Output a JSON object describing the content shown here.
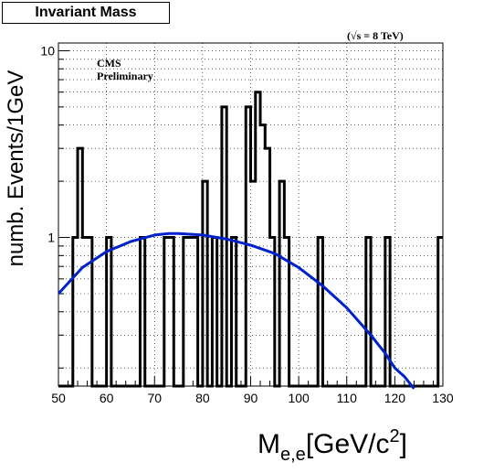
{
  "title": "Invariant Mass",
  "energy_label": "(√s = 8 TeV)",
  "cms_label": "CMS",
  "preliminary_label": "Preliminary",
  "ylabel": "numb. Events/1GeV",
  "xlabel_main": "M",
  "xlabel_sub": "e,e",
  "xlabel_unit": "[GeV/c",
  "xlabel_sup": "2",
  "xlabel_close": "]",
  "colors": {
    "histogram": "#000000",
    "fit": "#0022cc",
    "grid": "#000000"
  },
  "chart_data": {
    "type": "bar",
    "histogram_style": "step",
    "xlim": [
      50,
      130
    ],
    "ylim": [
      0.16,
      11
    ],
    "ylog": true,
    "grid": true,
    "x_ticks": [
      50,
      60,
      70,
      80,
      90,
      100,
      110,
      120,
      130
    ],
    "y_ticks": [
      {
        "value": 1,
        "label": "1"
      },
      {
        "value": 10,
        "label": "10"
      }
    ],
    "bin_width": 1,
    "bins": [
      {
        "x": 53,
        "count": 1
      },
      {
        "x": 54,
        "count": 3
      },
      {
        "x": 55,
        "count": 1
      },
      {
        "x": 56,
        "count": 1
      },
      {
        "x": 60,
        "count": 1
      },
      {
        "x": 67,
        "count": 1
      },
      {
        "x": 72,
        "count": 1
      },
      {
        "x": 73,
        "count": 1
      },
      {
        "x": 76,
        "count": 1
      },
      {
        "x": 77,
        "count": 1
      },
      {
        "x": 78,
        "count": 1
      },
      {
        "x": 80,
        "count": 2
      },
      {
        "x": 82,
        "count": 1
      },
      {
        "x": 84,
        "count": 5
      },
      {
        "x": 86,
        "count": 1
      },
      {
        "x": 89,
        "count": 5
      },
      {
        "x": 90,
        "count": 2
      },
      {
        "x": 91,
        "count": 6
      },
      {
        "x": 92,
        "count": 4
      },
      {
        "x": 93,
        "count": 3
      },
      {
        "x": 94,
        "count": 1
      },
      {
        "x": 96,
        "count": 2
      },
      {
        "x": 97,
        "count": 1
      },
      {
        "x": 104,
        "count": 1
      },
      {
        "x": 114,
        "count": 1
      },
      {
        "x": 118,
        "count": 1
      },
      {
        "x": 129,
        "count": 1
      }
    ],
    "fit_curve": {
      "name": "fit",
      "x": [
        50,
        55,
        60,
        65,
        70,
        73,
        75,
        80,
        85,
        90,
        95,
        100,
        105,
        110,
        115,
        118,
        120,
        122,
        124
      ],
      "y": [
        0.5,
        0.69,
        0.84,
        0.95,
        1.03,
        1.05,
        1.05,
        1.03,
        0.98,
        0.91,
        0.82,
        0.69,
        0.55,
        0.42,
        0.3,
        0.24,
        0.2,
        0.18,
        0.155
      ]
    }
  }
}
